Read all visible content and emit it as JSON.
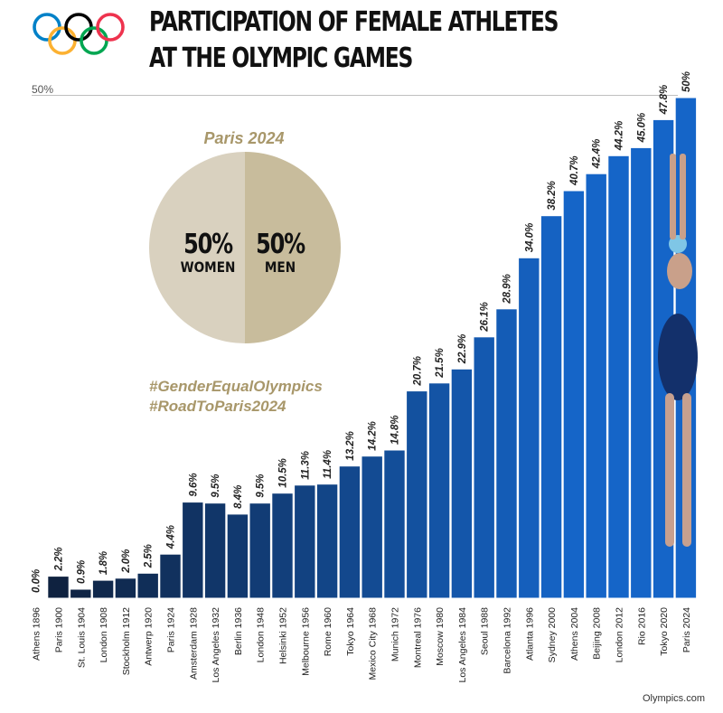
{
  "header": {
    "title_line1": "PARTICIPATION OF FEMALE ATHLETES",
    "title_line2": "AT THE OLYMPIC GAMES",
    "reference_label": "50%"
  },
  "logo": {
    "name": "olympic-rings",
    "colors": [
      "#0081c8",
      "#000000",
      "#ee334e",
      "#fcb131",
      "#00a651"
    ]
  },
  "inset": {
    "title": "Paris 2024",
    "women_pct": "50%",
    "women_label": "WOMEN",
    "men_pct": "50%",
    "men_label": "MEN",
    "colors": {
      "women": "#d9d1bf",
      "men": "#c8bc9c",
      "accent": "#a8976a"
    },
    "hashtags": [
      "#GenderEqualOlympics",
      "#RoadToParis2024"
    ]
  },
  "footer": {
    "credit": "Olympics.com"
  },
  "chart_data": {
    "type": "bar",
    "title": "PARTICIPATION OF FEMALE ATHLETES AT THE OLYMPIC GAMES",
    "xlabel": "",
    "ylabel": "",
    "ylim": [
      0,
      50
    ],
    "reference_line": 50,
    "grid": false,
    "categories": [
      "Athens 1896",
      "Paris 1900",
      "St. Louis 1904",
      "London 1908",
      "Stockholm 1912",
      "Antwerp 1920",
      "Paris 1924",
      "Amsterdam 1928",
      "Los Angeles 1932",
      "Berlin 1936",
      "London 1948",
      "Helsinki 1952",
      "Melbourne 1956",
      "Rome 1960",
      "Tokyo 1964",
      "Mexico City 1968",
      "Munich 1972",
      "Montreal 1976",
      "Moscow 1980",
      "Los Angeles 1984",
      "Seoul 1988",
      "Barcelona 1992",
      "Atlanta 1996",
      "Sydney 2000",
      "Athens 2004",
      "Beijing 2008",
      "London 2012",
      "Rio 2016",
      "Tokyo 2020",
      "Paris 2024"
    ],
    "values": [
      0.0,
      2.2,
      0.9,
      1.8,
      2.0,
      2.5,
      4.4,
      9.6,
      9.5,
      8.4,
      9.5,
      10.5,
      11.3,
      11.4,
      13.2,
      14.2,
      14.8,
      20.7,
      21.5,
      22.9,
      26.1,
      28.9,
      34.0,
      38.2,
      40.7,
      42.4,
      44.2,
      45.0,
      47.8,
      50
    ],
    "value_labels": [
      "0.0%",
      "2.2%",
      "0.9%",
      "1.8%",
      "2.0%",
      "2.5%",
      "4.4%",
      "9.6%",
      "9.5%",
      "8.4%",
      "9.5%",
      "10.5%",
      "11.3%",
      "11.4%",
      "13.2%",
      "14.2%",
      "14.8%",
      "20.7%",
      "21.5%",
      "22.9%",
      "26.1%",
      "28.9%",
      "34.0%",
      "38.2%",
      "40.7%",
      "42.4%",
      "44.2%",
      "45.0%",
      "47.8%",
      "50%"
    ],
    "colors": {
      "bar_dark": "#0f1f3a",
      "bar_light": "#1565c8",
      "background_top": "#0a56b4",
      "background_bottom": "#1a3f7a"
    }
  }
}
